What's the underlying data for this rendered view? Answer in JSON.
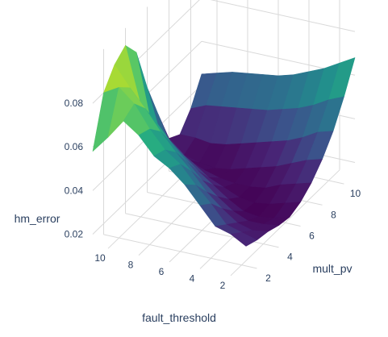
{
  "chart_data": {
    "type": "surface",
    "title": "",
    "colorscale": "Viridis",
    "colors": {
      "low": "#440154",
      "mid": "#21918c",
      "high": "#fde725",
      "grid": "#d9d9d9",
      "pane": "#ffffff",
      "text": "#2a3f5f"
    },
    "axes": {
      "x": {
        "label": "fault_threshold",
        "tick_labels": [
          "2",
          "4",
          "6",
          "8",
          "10"
        ],
        "tick_values": [
          2,
          4,
          6,
          8,
          10
        ],
        "range": [
          1,
          11
        ]
      },
      "y": {
        "label": "mult_pv",
        "tick_labels": [
          "2",
          "4",
          "6",
          "8",
          "10"
        ],
        "tick_values": [
          2,
          4,
          6,
          8,
          10
        ],
        "range": [
          1,
          11
        ]
      },
      "z": {
        "label": "hm_error",
        "tick_labels": [
          "0.02",
          "0.04",
          "0.06",
          "0.08"
        ],
        "tick_values": [
          0.02,
          0.04,
          0.06,
          0.08
        ],
        "range": [
          0.015,
          0.1
        ]
      }
    },
    "x": [
      1,
      2,
      3,
      4,
      5,
      6,
      7,
      8,
      9,
      10,
      11
    ],
    "y": [
      1,
      2,
      3,
      4,
      5,
      6,
      7,
      8,
      9,
      10,
      11
    ],
    "z": [
      [
        0.03,
        0.028,
        0.027,
        0.025,
        0.024,
        0.026,
        0.03,
        0.036,
        0.044,
        0.055,
        0.068
      ],
      [
        0.034,
        0.03,
        0.026,
        0.024,
        0.022,
        0.024,
        0.028,
        0.034,
        0.042,
        0.052,
        0.064
      ],
      [
        0.036,
        0.032,
        0.028,
        0.024,
        0.021,
        0.022,
        0.026,
        0.031,
        0.038,
        0.048,
        0.06
      ],
      [
        0.044,
        0.04,
        0.033,
        0.027,
        0.022,
        0.021,
        0.023,
        0.028,
        0.035,
        0.045,
        0.057
      ],
      [
        0.052,
        0.047,
        0.039,
        0.032,
        0.026,
        0.022,
        0.022,
        0.026,
        0.033,
        0.043,
        0.054
      ],
      [
        0.058,
        0.055,
        0.047,
        0.038,
        0.031,
        0.025,
        0.022,
        0.024,
        0.031,
        0.041,
        0.052
      ],
      [
        0.062,
        0.06,
        0.054,
        0.045,
        0.036,
        0.028,
        0.023,
        0.022,
        0.029,
        0.04,
        0.051
      ],
      [
        0.07,
        0.068,
        0.062,
        0.052,
        0.042,
        0.033,
        0.025,
        0.021,
        0.027,
        0.039,
        0.05
      ],
      [
        0.075,
        0.078,
        0.071,
        0.06,
        0.048,
        0.037,
        0.028,
        0.022,
        0.026,
        0.038,
        0.049
      ],
      [
        0.066,
        0.084,
        0.079,
        0.066,
        0.052,
        0.04,
        0.03,
        0.024,
        0.027,
        0.037,
        0.047
      ],
      [
        0.058,
        0.08,
        0.088,
        0.092,
        0.084,
        0.063,
        0.046,
        0.03,
        0.027,
        0.034,
        0.045
      ]
    ],
    "grid": true,
    "legend": "none"
  }
}
